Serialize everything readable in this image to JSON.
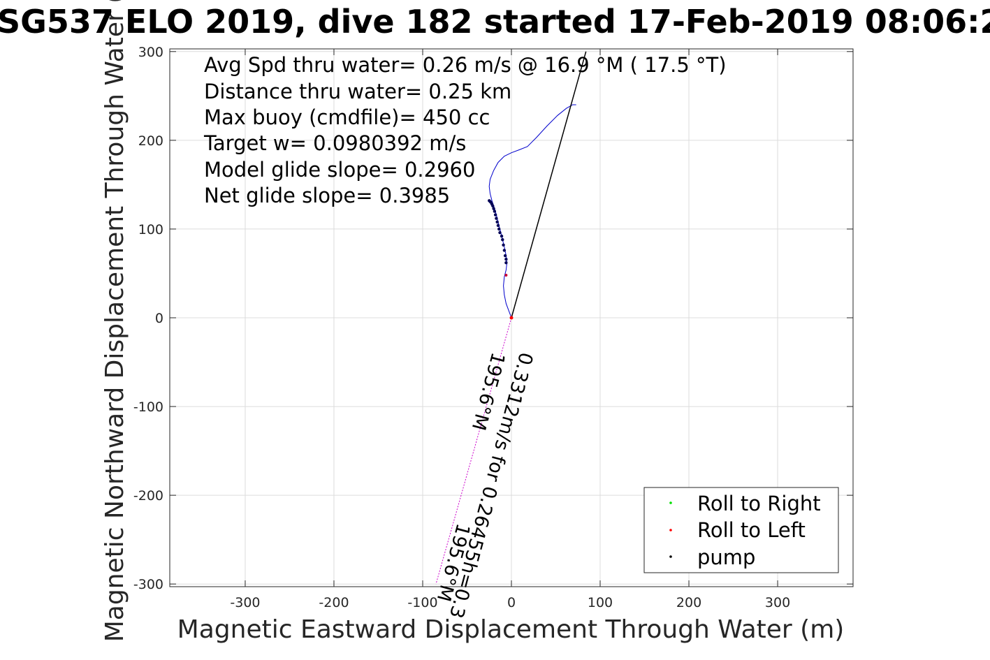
{
  "chart_data": {
    "type": "line",
    "title": "SG537 ELO 2019, dive 182 started 17-Feb-2019 08:06:2",
    "xlabel": "Magnetic Eastward Displacement Through Water (m)",
    "ylabel": "Magnetic Northward Displacement Through Water (",
    "xlim": [
      -385,
      385
    ],
    "ylim": [
      -303,
      303
    ],
    "xticks": [
      -300,
      -200,
      -100,
      0,
      100,
      200,
      300
    ],
    "yticks": [
      -300,
      -200,
      -100,
      0,
      100,
      200,
      300
    ],
    "xtick_labels": [
      "-300",
      "-200",
      "-100",
      "0",
      "100",
      "200",
      "300"
    ],
    "ytick_labels": [
      "-300",
      "-200",
      "-100",
      "0",
      "100",
      "200",
      "300"
    ],
    "grid": true,
    "annotations": [
      "Avg Spd thru water=  0.26 m/s @  16.9 °M ( 17.5 °T)",
      "Distance thru water=  0.25 km",
      "Max buoy (cmdfile)= 450 cc",
      "Target w= 0.0980392 m/s",
      "Model glide slope= 0.2960",
      "Net glide slope= 0.3985"
    ],
    "rotated_labels": [
      "0.3312m/s for 0.26455h=0.3",
      "195.6°M",
      "195.6°M"
    ],
    "legend": {
      "placement": "bottom-right",
      "entries": [
        {
          "name": "Roll to Right",
          "color": "#00e000"
        },
        {
          "name": "Roll to Left",
          "color": "#ff0000"
        },
        {
          "name": "pump",
          "color": "#000000"
        }
      ]
    },
    "series": [
      {
        "name": "track",
        "color": "#0000cc",
        "x": [
          0,
          -3,
          -6,
          -8,
          -9,
          -8,
          -6,
          -5,
          -6,
          -8,
          -10,
          -12,
          -14,
          -16,
          -18,
          -20,
          -22,
          -24,
          -25,
          -24,
          -20,
          -15,
          -8,
          0,
          8,
          18,
          28,
          40,
          52,
          62,
          69,
          73
        ],
        "y": [
          0,
          8,
          16,
          26,
          36,
          46,
          54,
          62,
          70,
          80,
          88,
          96,
          104,
          112,
          120,
          126,
          132,
          140,
          148,
          156,
          166,
          175,
          182,
          186,
          189,
          193,
          203,
          216,
          228,
          236,
          240,
          240
        ]
      },
      {
        "name": "pump-dots",
        "color": "#000055",
        "x": [
          -6,
          -6,
          -7,
          -8,
          -9,
          -10,
          -11,
          -13,
          -14,
          -15,
          -16,
          -17,
          -18,
          -19,
          -20,
          -21,
          -22,
          -23,
          -24,
          -25
        ],
        "y": [
          62,
          66,
          70,
          76,
          82,
          88,
          92,
          96,
          100,
          104,
          108,
          112,
          116,
          120,
          123,
          126,
          128,
          130,
          131,
          132
        ]
      },
      {
        "name": "current-line",
        "color": "#000000",
        "x": [
          0,
          84
        ],
        "y": [
          0,
          300
        ]
      },
      {
        "name": "drift-line",
        "color": "#cc00cc",
        "x": [
          0,
          -85
        ],
        "y": [
          0,
          -300
        ]
      }
    ]
  }
}
